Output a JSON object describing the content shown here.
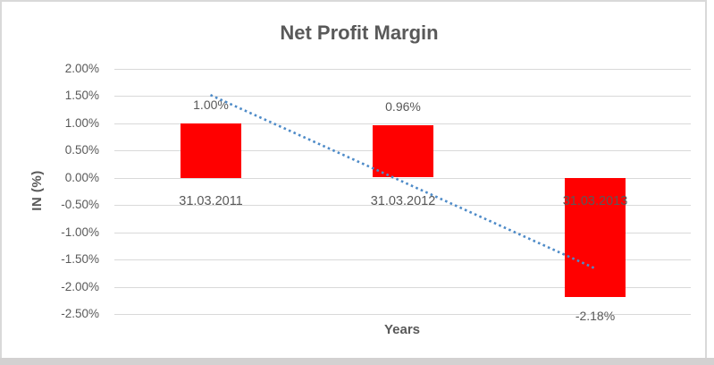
{
  "colors": {
    "bar": "#ff0000",
    "trendline": "#4e8bc8",
    "text": "#595959",
    "gridline": "#d9d9d9",
    "frame_border": "#d9d9d9",
    "bottom_strip": "#d3d1d1",
    "background": "#ffffff"
  },
  "chart_data": {
    "type": "bar",
    "title": "Net Profit Margin",
    "xlabel": "Years",
    "ylabel": "IN (%)",
    "categories": [
      "31.03.2011",
      "31.03.2012",
      "31.03.2013"
    ],
    "values": [
      1.0,
      0.96,
      -2.18
    ],
    "value_labels": [
      "1.00%",
      "0.96%",
      "-2.18%"
    ],
    "ylim": [
      -2.5,
      2.0
    ],
    "ytick_step": 0.5,
    "ytick_labels": [
      "2.00%",
      "1.50%",
      "1.00%",
      "0.50%",
      "0.00%",
      "-0.50%",
      "-1.00%",
      "-1.50%",
      "-2.00%",
      "-2.50%"
    ],
    "grid": true,
    "legend": "none",
    "trendline": {
      "style": "dotted",
      "from_category_index": 0,
      "to_category_index": 2,
      "y_start_pct": 1.52,
      "y_end_pct": -1.66
    }
  }
}
